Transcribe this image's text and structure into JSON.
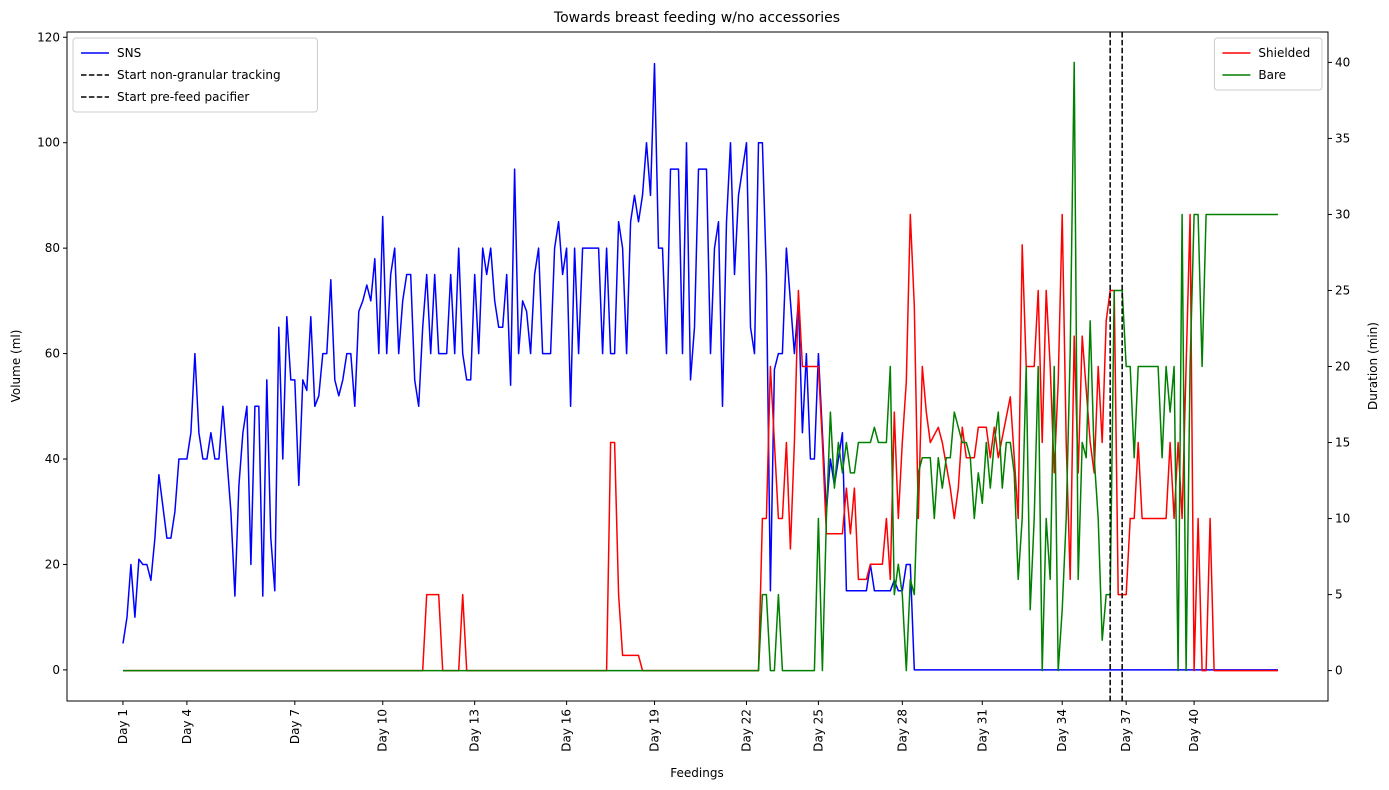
{
  "chart_data": {
    "type": "line",
    "title": "Towards breast feeding w/no accessories",
    "xlabel": "Feedings",
    "ylabel": "Volume (ml)",
    "y2label": "Duration (min)",
    "xlim": [
      -14,
      301.5
    ],
    "xticks": [
      {
        "value": 0,
        "label": "Day 1"
      },
      {
        "value": 16,
        "label": "Day 4"
      },
      {
        "value": 43,
        "label": "Day 7"
      },
      {
        "value": 65,
        "label": "Day 10"
      },
      {
        "value": 88,
        "label": "Day 13"
      },
      {
        "value": 111,
        "label": "Day 16"
      },
      {
        "value": 133,
        "label": "Day 19"
      },
      {
        "value": 156,
        "label": "Day 22"
      },
      {
        "value": 174,
        "label": "Day 25"
      },
      {
        "value": 195,
        "label": "Day 28"
      },
      {
        "value": 215,
        "label": "Day 31"
      },
      {
        "value": 235,
        "label": "Day 34"
      },
      {
        "value": 251,
        "label": "Day 37"
      },
      {
        "value": 268,
        "label": "Day 40"
      }
    ],
    "ylim": [
      -5.9,
      121
    ],
    "yticks": [
      0,
      20,
      40,
      60,
      80,
      100,
      120
    ],
    "y2lim": [
      -2,
      42
    ],
    "y2ticks": [
      0,
      5,
      10,
      15,
      20,
      25,
      30,
      35,
      40
    ],
    "legend": {
      "y": "upper left",
      "y2": "upper right"
    },
    "series": [
      {
        "name": "SNS",
        "color": "#0000ff",
        "axis": "y",
        "x": [
          0,
          1,
          2,
          3,
          4,
          5,
          6,
          7,
          8,
          9,
          10,
          11,
          12,
          13,
          14,
          16,
          17,
          18,
          19,
          20,
          21,
          22,
          23,
          24,
          25,
          26,
          27,
          28,
          29,
          30,
          31,
          32,
          33,
          34,
          35,
          36,
          37,
          38,
          39,
          40,
          41,
          42,
          43,
          44,
          45,
          46,
          47,
          48,
          49,
          50,
          51,
          52,
          53,
          54,
          55,
          56,
          57,
          58,
          59,
          60,
          61,
          62,
          63,
          64,
          65,
          66,
          67,
          68,
          69,
          70,
          71,
          72,
          73,
          74,
          75,
          76,
          77,
          78,
          79,
          81,
          82,
          83,
          84,
          85,
          86,
          87,
          88,
          89,
          90,
          91,
          92,
          93,
          94,
          95,
          96,
          97,
          98,
          99,
          100,
          101,
          102,
          103,
          104,
          105,
          107,
          108,
          109,
          110,
          111,
          112,
          113,
          114,
          115,
          119,
          120,
          121,
          122,
          123,
          124,
          125,
          126,
          127,
          128,
          129,
          130,
          131,
          132,
          133,
          134,
          135,
          136,
          137,
          139,
          140,
          141,
          142,
          143,
          144,
          146,
          147,
          148,
          149,
          150,
          151,
          152,
          153,
          154,
          156,
          157,
          158,
          159,
          160,
          161,
          162,
          163,
          164,
          165,
          166,
          167,
          168,
          169,
          170,
          171,
          172,
          173,
          174,
          175,
          176,
          177,
          178,
          179,
          180,
          181,
          186,
          187,
          188,
          192,
          193,
          194,
          195,
          196,
          197,
          198,
          289
        ],
        "values": [
          5,
          10,
          20,
          10,
          21,
          20,
          20,
          17,
          25,
          37,
          31,
          25,
          25,
          30,
          40,
          40,
          45,
          60,
          45,
          40,
          40,
          45,
          40,
          40,
          50,
          40,
          30,
          14,
          35,
          45,
          50,
          20,
          50,
          50,
          14,
          55,
          25,
          15,
          65,
          40,
          67,
          55,
          55,
          35,
          55,
          53,
          67,
          50,
          52,
          60,
          60,
          74,
          55,
          52,
          55,
          60,
          60,
          50,
          68,
          70,
          73,
          70,
          78,
          60,
          86,
          60,
          75,
          80,
          60,
          70,
          75,
          75,
          55,
          50,
          65,
          75,
          60,
          75,
          60,
          60,
          75,
          60,
          80,
          60,
          55,
          55,
          75,
          60,
          80,
          75,
          80,
          70,
          65,
          65,
          75,
          54,
          95,
          60,
          70,
          68,
          60,
          75,
          80,
          60,
          60,
          80,
          85,
          75,
          80,
          50,
          80,
          60,
          80,
          80,
          60,
          80,
          60,
          60,
          85,
          80,
          60,
          85,
          90,
          85,
          90,
          100,
          90,
          115,
          80,
          80,
          60,
          95,
          95,
          60,
          100,
          55,
          65,
          95,
          95,
          60,
          80,
          85,
          50,
          85,
          100,
          75,
          90,
          100,
          65,
          60,
          100,
          100,
          75,
          15,
          57,
          60,
          60,
          80,
          70,
          60,
          70,
          45,
          60,
          40,
          40,
          60,
          45,
          30,
          40,
          35,
          40,
          45,
          15,
          15,
          20,
          15,
          15,
          17,
          15,
          15,
          20,
          20,
          0,
          0
        ]
      },
      {
        "name": "Shielded",
        "color": "#ff0000",
        "axis": "y2",
        "x": [
          0,
          75,
          76,
          79,
          80,
          84,
          85,
          86,
          121,
          122,
          123,
          124,
          125,
          129,
          130,
          159,
          160,
          161,
          162,
          163,
          164,
          165,
          166,
          167,
          168,
          169,
          170,
          171,
          174,
          175,
          176,
          180,
          181,
          182,
          183,
          184,
          186,
          187,
          190,
          191,
          192,
          193,
          194,
          195,
          196,
          197,
          198,
          199,
          200,
          201,
          202,
          204,
          205,
          207,
          208,
          209,
          210,
          211,
          213,
          214,
          216,
          217,
          218,
          219,
          222,
          224,
          225,
          226,
          228,
          229,
          230,
          231,
          232,
          233,
          234,
          235,
          236,
          237,
          238,
          239,
          240,
          242,
          243,
          244,
          245,
          246,
          247,
          248,
          249,
          251,
          252,
          253,
          254,
          255,
          261,
          262,
          263,
          264,
          265,
          267,
          268,
          269,
          270,
          271,
          272,
          273,
          289
        ],
        "values": [
          0,
          0,
          5,
          5,
          0,
          0,
          5,
          0,
          0,
          15,
          15,
          5,
          1,
          1,
          0,
          0,
          10,
          10,
          20,
          15,
          10,
          10,
          15,
          8,
          15,
          25,
          20,
          20,
          20,
          15,
          9,
          9,
          12,
          9,
          12,
          6,
          6,
          7,
          7,
          10,
          6,
          17,
          10,
          15,
          19,
          30,
          24,
          10,
          20,
          17,
          15,
          16,
          15,
          12,
          10,
          12,
          16,
          14,
          14,
          16,
          16,
          14,
          16,
          14,
          18,
          10,
          28,
          20,
          20,
          25,
          15,
          25,
          20,
          13,
          19,
          30,
          15,
          6,
          22,
          13,
          22,
          15,
          13,
          20,
          15,
          23,
          25,
          25,
          5,
          5,
          10,
          10,
          15,
          10,
          10,
          15,
          10,
          15,
          10,
          30,
          0,
          10,
          0,
          0,
          10,
          0,
          0
        ]
      },
      {
        "name": "Bare",
        "color": "#008000",
        "axis": "y2",
        "x": [
          0,
          159,
          160,
          161,
          162,
          163,
          164,
          165,
          173,
          174,
          175,
          176,
          177,
          178,
          179,
          180,
          181,
          182,
          183,
          184,
          185,
          187,
          188,
          189,
          191,
          192,
          193,
          194,
          195,
          196,
          197,
          198,
          199,
          200,
          202,
          203,
          204,
          205,
          206,
          207,
          208,
          209,
          210,
          211,
          212,
          213,
          214,
          215,
          216,
          217,
          218,
          219,
          220,
          221,
          222,
          223,
          224,
          225,
          226,
          227,
          228,
          229,
          230,
          231,
          232,
          233,
          234,
          235,
          236,
          237,
          238,
          239,
          240,
          241,
          242,
          243,
          244,
          245,
          246,
          247,
          248,
          250,
          251,
          252,
          253,
          254,
          259,
          260,
          261,
          262,
          263,
          264,
          265,
          266,
          267,
          268,
          269,
          270,
          271,
          289
        ],
        "values": [
          0,
          0,
          5,
          5,
          0,
          0,
          5,
          0,
          0,
          10,
          0,
          10,
          17,
          12,
          15,
          13,
          15,
          13,
          13,
          15,
          15,
          15,
          16,
          15,
          15,
          20,
          5,
          7,
          5,
          0,
          6,
          5,
          13,
          14,
          14,
          10,
          14,
          12,
          14,
          14,
          17,
          16,
          15,
          15,
          14,
          10,
          13,
          11,
          15,
          12,
          15,
          17,
          12,
          15,
          15,
          13,
          6,
          10,
          20,
          4,
          10,
          20,
          0,
          10,
          6,
          20,
          0,
          4,
          10,
          21,
          40,
          6,
          15,
          14,
          23,
          14,
          10,
          2,
          5,
          5,
          25,
          25,
          20,
          20,
          14,
          20,
          20,
          14,
          20,
          17,
          20,
          0,
          30,
          0,
          20,
          30,
          30,
          20,
          30,
          30
        ]
      }
    ],
    "vlines": [
      {
        "name": "Start non-granular tracking",
        "value": 247,
        "color": "#000000",
        "style": "dashed"
      },
      {
        "name": "Start pre-feed pacifier",
        "value": 250,
        "color": "#000000",
        "style": "dashed"
      }
    ]
  }
}
